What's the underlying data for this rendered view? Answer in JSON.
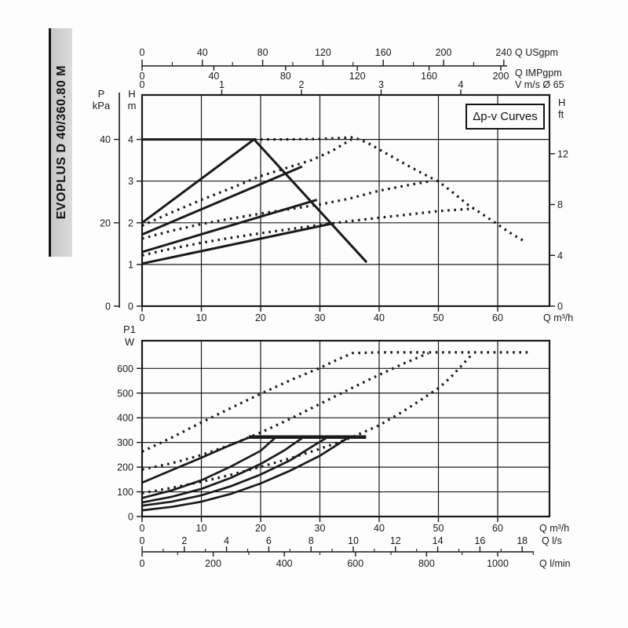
{
  "model_tab": {
    "label": "EVOPLUS D 40/360.80 M"
  },
  "legend": {
    "label": "Δp-v Curves"
  },
  "chart_data": [
    {
      "type": "line",
      "title": "Δp-v Curves (head vs flow)",
      "xlabel": "Q m³/h",
      "xlim": [
        0,
        68.5
      ],
      "ylim": [
        0,
        5
      ],
      "grid": "on",
      "x_axis": {
        "label": "Q m³/h",
        "ticks": [
          0,
          10,
          20,
          30,
          40,
          50,
          60
        ]
      },
      "y_axis_h_m": {
        "header": [
          "H",
          "m"
        ],
        "ticks": [
          0,
          1,
          2,
          3,
          4
        ]
      },
      "y_axis_p_kpa": {
        "header": [
          "P",
          "kPa"
        ],
        "ticks": [
          0,
          20,
          40
        ]
      },
      "y_axis_h_ft": {
        "header": [
          "H",
          "ft"
        ],
        "ticks": [
          0,
          4,
          8,
          12
        ]
      },
      "x_scale_usgpm": {
        "label": "Q USgpm",
        "ticks": [
          0,
          40,
          80,
          120,
          160,
          200,
          240
        ]
      },
      "x_scale_impgpm": {
        "label": "Q IMPgpm",
        "ticks": [
          0,
          40,
          80,
          120,
          160,
          200
        ]
      },
      "x_scale_v": {
        "label": "V m/s Ø 65",
        "ticks": [
          0,
          1,
          2,
          3,
          4
        ]
      },
      "series_solid": [
        {
          "name": "max-head-limit",
          "points": [
            [
              0,
              4.0
            ],
            [
              18.9,
              4.0
            ]
          ]
        },
        {
          "name": "dpv-line-max-rise",
          "points": [
            [
              0,
              2.0
            ],
            [
              18.9,
              4.0
            ]
          ]
        },
        {
          "name": "max-curve-fall",
          "points": [
            [
              18.9,
              4.0
            ],
            [
              37.9,
              1.05
            ]
          ]
        },
        {
          "name": "dpv-line-2",
          "points": [
            [
              0,
              1.72
            ],
            [
              27,
              3.35
            ]
          ]
        },
        {
          "name": "dpv-line-3",
          "points": [
            [
              0,
              1.3
            ],
            [
              29.5,
              2.55
            ]
          ]
        },
        {
          "name": "dpv-line-min",
          "points": [
            [
              0,
              1.02
            ],
            [
              32,
              1.98
            ]
          ]
        }
      ],
      "series_dotted": [
        {
          "name": "max-speed-curve",
          "points": [
            [
              18.9,
              4.0
            ],
            [
              24,
              4.0
            ],
            [
              29,
              4.01
            ],
            [
              33,
              4.03
            ],
            [
              35.7,
              4.05
            ],
            [
              38,
              3.92
            ],
            [
              40,
              3.76
            ],
            [
              43,
              3.52
            ],
            [
              45,
              3.36
            ],
            [
              47.5,
              3.17
            ],
            [
              50,
              2.99
            ],
            [
              52.5,
              2.72
            ],
            [
              55,
              2.43
            ],
            [
              57.5,
              2.2
            ],
            [
              60,
              1.96
            ],
            [
              62.5,
              1.72
            ],
            [
              64.6,
              1.55
            ]
          ]
        },
        {
          "name": "dpv-curve-1",
          "points": [
            [
              0,
              1.93
            ],
            [
              5,
              2.25
            ],
            [
              10,
              2.55
            ],
            [
              15,
              2.83
            ],
            [
              20,
              3.12
            ],
            [
              24,
              3.3
            ],
            [
              28.5,
              3.5
            ],
            [
              32,
              3.72
            ],
            [
              35.3,
              4.0
            ]
          ]
        },
        {
          "name": "dpv-curve-2",
          "points": [
            [
              0,
              1.62
            ],
            [
              5,
              1.81
            ],
            [
              10,
              1.97
            ],
            [
              15,
              2.1
            ],
            [
              20,
              2.22
            ],
            [
              25,
              2.33
            ],
            [
              30,
              2.44
            ],
            [
              35,
              2.58
            ],
            [
              40,
              2.77
            ],
            [
              44,
              2.88
            ],
            [
              48.3,
              2.99
            ]
          ]
        },
        {
          "name": "dpv-curve-3",
          "points": [
            [
              0,
              1.22
            ],
            [
              5,
              1.38
            ],
            [
              10,
              1.52
            ],
            [
              15,
              1.64
            ],
            [
              20,
              1.75
            ],
            [
              25,
              1.85
            ],
            [
              30,
              1.95
            ],
            [
              35,
              2.04
            ],
            [
              40,
              2.12
            ],
            [
              45,
              2.2
            ],
            [
              50,
              2.28
            ],
            [
              53,
              2.31
            ],
            [
              56,
              2.34
            ]
          ]
        }
      ]
    },
    {
      "type": "line",
      "title": "Power input P1 vs flow",
      "xlabel": "Q m³/h",
      "xlim": [
        0,
        68.5
      ],
      "ylim": [
        0,
        710
      ],
      "grid": "on",
      "x_axis": {
        "label": "Q m³/h",
        "ticks": [
          0,
          10,
          20,
          30,
          40,
          50,
          60
        ]
      },
      "y_axis_w": {
        "header": [
          "P1",
          "W"
        ],
        "ticks": [
          0,
          100,
          200,
          300,
          400,
          500,
          600
        ]
      },
      "x_scale_ls": {
        "label": "Q l/s",
        "ticks": [
          0,
          2,
          4,
          6,
          8,
          10,
          12,
          14,
          16,
          18
        ]
      },
      "x_scale_lmin": {
        "label": "Q l/min",
        "ticks": [
          0,
          200,
          400,
          600,
          800,
          1000
        ]
      },
      "series_solid": [
        {
          "name": "p1-limit",
          "thick": true,
          "points": [
            [
              18,
              322
            ],
            [
              37.8,
              322
            ]
          ]
        },
        {
          "name": "p1-solid-1",
          "points": [
            [
              0,
              137
            ],
            [
              5,
              188
            ],
            [
              10,
              238
            ],
            [
              14,
              280
            ],
            [
              18,
              320
            ]
          ]
        },
        {
          "name": "p1-solid-2",
          "points": [
            [
              0,
              75
            ],
            [
              5,
              106
            ],
            [
              10,
              147
            ],
            [
              15,
              203
            ],
            [
              20,
              266
            ],
            [
              22.5,
              320
            ]
          ]
        },
        {
          "name": "p1-solid-3",
          "points": [
            [
              0,
              57
            ],
            [
              5,
              80
            ],
            [
              10,
              112
            ],
            [
              15,
              157
            ],
            [
              20,
              213
            ],
            [
              24,
              268
            ],
            [
              27,
              318
            ]
          ]
        },
        {
          "name": "p1-solid-4",
          "points": [
            [
              0,
              44
            ],
            [
              5,
              60
            ],
            [
              10,
              86
            ],
            [
              15,
              123
            ],
            [
              20,
              170
            ],
            [
              25,
              228
            ],
            [
              29,
              288
            ],
            [
              31.2,
              320
            ]
          ]
        },
        {
          "name": "p1-solid-5",
          "points": [
            [
              0,
              25
            ],
            [
              5,
              39
            ],
            [
              10,
              60
            ],
            [
              15,
              92
            ],
            [
              20,
              134
            ],
            [
              25,
              186
            ],
            [
              30,
              246
            ],
            [
              33,
              292
            ],
            [
              34.8,
              320
            ]
          ]
        }
      ],
      "series_dotted": [
        {
          "name": "p1-dotted-1",
          "points": [
            [
              0,
              263
            ],
            [
              5,
              320
            ],
            [
              10,
              381
            ],
            [
              15,
              440
            ],
            [
              20,
              497
            ],
            [
              25,
              552
            ],
            [
              30,
              602
            ],
            [
              33,
              636
            ],
            [
              35.5,
              662
            ],
            [
              40,
              665
            ],
            [
              50,
              665
            ],
            [
              58,
              665
            ],
            [
              65.5,
              665
            ]
          ]
        },
        {
          "name": "p1-dotted-2",
          "points": [
            [
              0,
              190
            ],
            [
              5,
              216
            ],
            [
              10,
              249
            ],
            [
              15,
              291
            ],
            [
              20,
              340
            ],
            [
              25,
              396
            ],
            [
              30,
              456
            ],
            [
              35,
              516
            ],
            [
              40,
              574
            ],
            [
              44,
              618
            ],
            [
              48.3,
              662
            ]
          ]
        },
        {
          "name": "p1-dotted-3",
          "points": [
            [
              0,
              95
            ],
            [
              5,
              116
            ],
            [
              10,
              141
            ],
            [
              15,
              169
            ],
            [
              20,
              201
            ],
            [
              25,
              236
            ],
            [
              30,
              274
            ],
            [
              35,
              317
            ],
            [
              40,
              369
            ],
            [
              44,
              425
            ],
            [
              47,
              472
            ],
            [
              50,
              520
            ],
            [
              52,
              562
            ],
            [
              54,
              614
            ],
            [
              55.8,
              660
            ]
          ]
        }
      ]
    }
  ]
}
